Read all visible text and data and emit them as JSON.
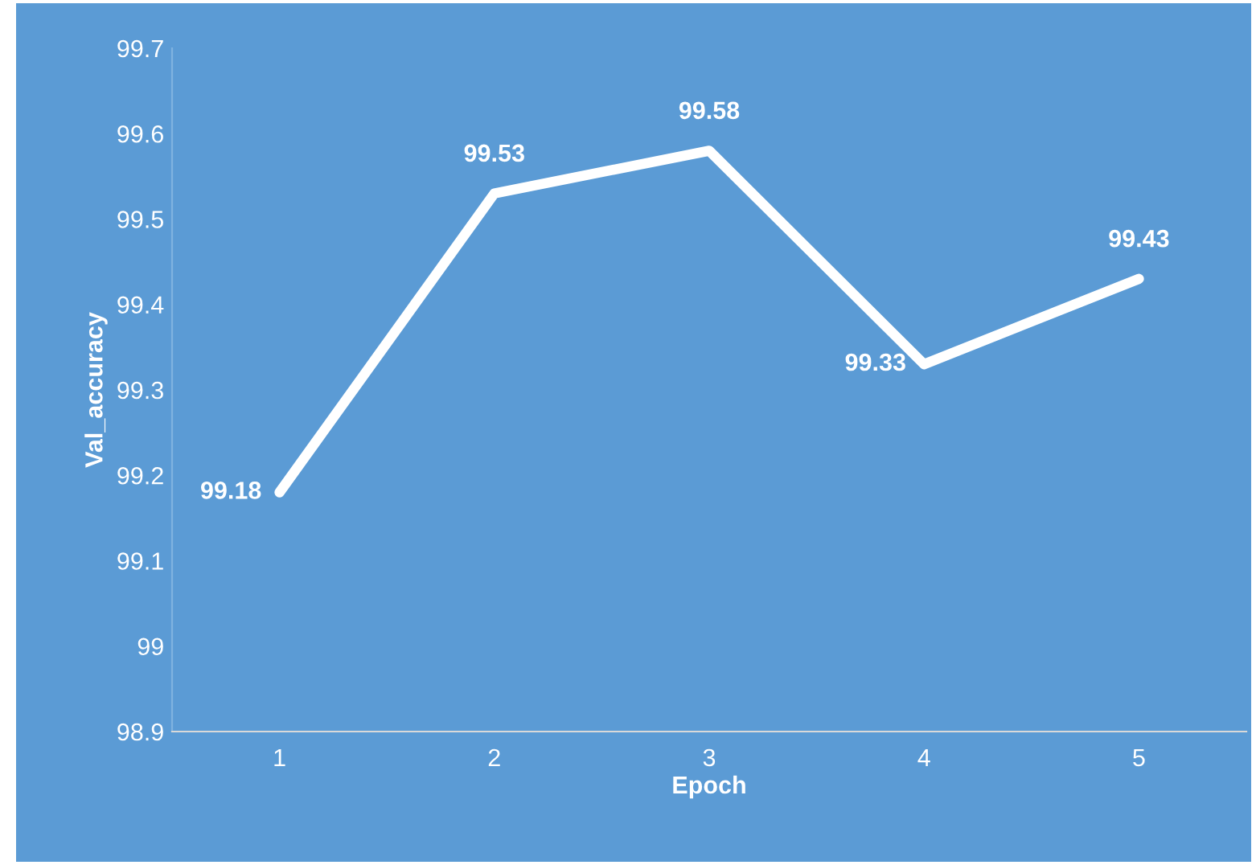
{
  "chart_data": {
    "type": "line",
    "xlabel": "Epoch",
    "ylabel": "Val_accuracy",
    "categories": [
      "1",
      "2",
      "3",
      "4",
      "5"
    ],
    "series": [
      {
        "color": "#ffffff",
        "values": [
          99.18,
          99.53,
          99.58,
          99.33,
          99.43
        ]
      }
    ],
    "ylim": [
      98.9,
      99.7
    ],
    "yticks": [
      98.9,
      {
        "value": 99.0,
        "label": "99"
      },
      99.1,
      99.2,
      99.3,
      99.4,
      99.5,
      99.6,
      99.7
    ],
    "data_labels": true,
    "grid": false,
    "legend": false,
    "marker": "none",
    "line_style": "solid"
  }
}
